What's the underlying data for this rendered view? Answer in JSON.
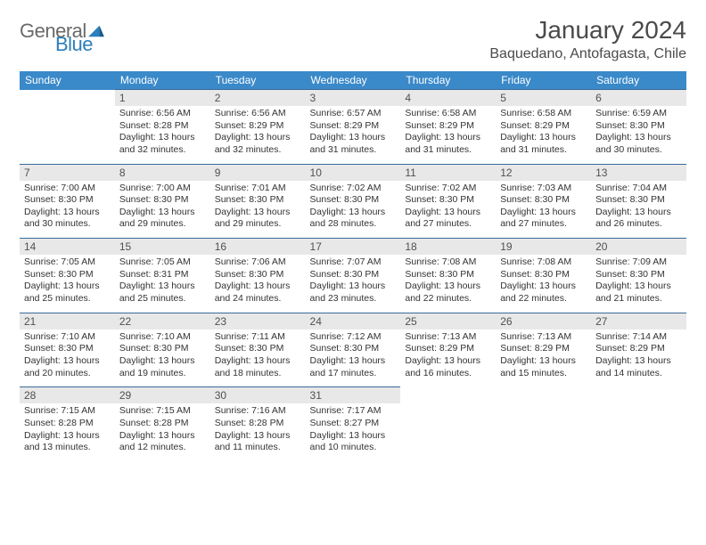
{
  "logo": {
    "text1": "General",
    "text2": "Blue"
  },
  "title": "January 2024",
  "location": "Baquedano, Antofagasta, Chile",
  "colors": {
    "header_bg": "#3a89c9",
    "header_text": "#ffffff",
    "daynum_bg": "#e8e8e8",
    "daynum_text": "#505050",
    "cell_border": "#3a6a99",
    "body_text": "#333333",
    "title_text": "#4a4a4a",
    "logo_gray": "#6a6a6a",
    "logo_blue": "#2b7fbc"
  },
  "day_labels": [
    "Sunday",
    "Monday",
    "Tuesday",
    "Wednesday",
    "Thursday",
    "Friday",
    "Saturday"
  ],
  "weeks": [
    [
      null,
      {
        "n": "1",
        "sr": "6:56 AM",
        "ss": "8:28 PM",
        "dl": "13 hours and 32 minutes."
      },
      {
        "n": "2",
        "sr": "6:56 AM",
        "ss": "8:29 PM",
        "dl": "13 hours and 32 minutes."
      },
      {
        "n": "3",
        "sr": "6:57 AM",
        "ss": "8:29 PM",
        "dl": "13 hours and 31 minutes."
      },
      {
        "n": "4",
        "sr": "6:58 AM",
        "ss": "8:29 PM",
        "dl": "13 hours and 31 minutes."
      },
      {
        "n": "5",
        "sr": "6:58 AM",
        "ss": "8:29 PM",
        "dl": "13 hours and 31 minutes."
      },
      {
        "n": "6",
        "sr": "6:59 AM",
        "ss": "8:30 PM",
        "dl": "13 hours and 30 minutes."
      }
    ],
    [
      {
        "n": "7",
        "sr": "7:00 AM",
        "ss": "8:30 PM",
        "dl": "13 hours and 30 minutes."
      },
      {
        "n": "8",
        "sr": "7:00 AM",
        "ss": "8:30 PM",
        "dl": "13 hours and 29 minutes."
      },
      {
        "n": "9",
        "sr": "7:01 AM",
        "ss": "8:30 PM",
        "dl": "13 hours and 29 minutes."
      },
      {
        "n": "10",
        "sr": "7:02 AM",
        "ss": "8:30 PM",
        "dl": "13 hours and 28 minutes."
      },
      {
        "n": "11",
        "sr": "7:02 AM",
        "ss": "8:30 PM",
        "dl": "13 hours and 27 minutes."
      },
      {
        "n": "12",
        "sr": "7:03 AM",
        "ss": "8:30 PM",
        "dl": "13 hours and 27 minutes."
      },
      {
        "n": "13",
        "sr": "7:04 AM",
        "ss": "8:30 PM",
        "dl": "13 hours and 26 minutes."
      }
    ],
    [
      {
        "n": "14",
        "sr": "7:05 AM",
        "ss": "8:30 PM",
        "dl": "13 hours and 25 minutes."
      },
      {
        "n": "15",
        "sr": "7:05 AM",
        "ss": "8:31 PM",
        "dl": "13 hours and 25 minutes."
      },
      {
        "n": "16",
        "sr": "7:06 AM",
        "ss": "8:30 PM",
        "dl": "13 hours and 24 minutes."
      },
      {
        "n": "17",
        "sr": "7:07 AM",
        "ss": "8:30 PM",
        "dl": "13 hours and 23 minutes."
      },
      {
        "n": "18",
        "sr": "7:08 AM",
        "ss": "8:30 PM",
        "dl": "13 hours and 22 minutes."
      },
      {
        "n": "19",
        "sr": "7:08 AM",
        "ss": "8:30 PM",
        "dl": "13 hours and 22 minutes."
      },
      {
        "n": "20",
        "sr": "7:09 AM",
        "ss": "8:30 PM",
        "dl": "13 hours and 21 minutes."
      }
    ],
    [
      {
        "n": "21",
        "sr": "7:10 AM",
        "ss": "8:30 PM",
        "dl": "13 hours and 20 minutes."
      },
      {
        "n": "22",
        "sr": "7:10 AM",
        "ss": "8:30 PM",
        "dl": "13 hours and 19 minutes."
      },
      {
        "n": "23",
        "sr": "7:11 AM",
        "ss": "8:30 PM",
        "dl": "13 hours and 18 minutes."
      },
      {
        "n": "24",
        "sr": "7:12 AM",
        "ss": "8:30 PM",
        "dl": "13 hours and 17 minutes."
      },
      {
        "n": "25",
        "sr": "7:13 AM",
        "ss": "8:29 PM",
        "dl": "13 hours and 16 minutes."
      },
      {
        "n": "26",
        "sr": "7:13 AM",
        "ss": "8:29 PM",
        "dl": "13 hours and 15 minutes."
      },
      {
        "n": "27",
        "sr": "7:14 AM",
        "ss": "8:29 PM",
        "dl": "13 hours and 14 minutes."
      }
    ],
    [
      {
        "n": "28",
        "sr": "7:15 AM",
        "ss": "8:28 PM",
        "dl": "13 hours and 13 minutes."
      },
      {
        "n": "29",
        "sr": "7:15 AM",
        "ss": "8:28 PM",
        "dl": "13 hours and 12 minutes."
      },
      {
        "n": "30",
        "sr": "7:16 AM",
        "ss": "8:28 PM",
        "dl": "13 hours and 11 minutes."
      },
      {
        "n": "31",
        "sr": "7:17 AM",
        "ss": "8:27 PM",
        "dl": "13 hours and 10 minutes."
      },
      null,
      null,
      null
    ]
  ],
  "labels": {
    "sunrise": "Sunrise: ",
    "sunset": "Sunset: ",
    "daylight": "Daylight: "
  }
}
